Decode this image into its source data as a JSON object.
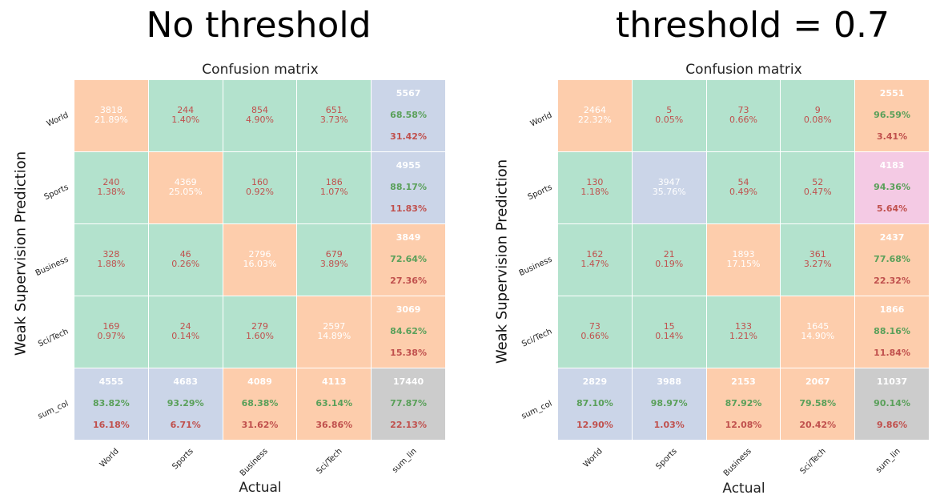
{
  "colors": {
    "green": "#b3e2cd",
    "orange": "#fdcdac",
    "blue": "#cbd5e8",
    "pink": "#f4cae4",
    "gray": "#cccccc",
    "text_red": "#c0504d",
    "text_green": "#5aa05a",
    "text_white": "#ffffff"
  },
  "chart_data": [
    {
      "type": "heatmap",
      "panel_title": "No threshold",
      "title": "Confusion matrix",
      "xlabel": "Actual",
      "ylabel": "Weak Supervision Prediction",
      "row_labels": [
        "World",
        "Sports",
        "Business",
        "Sci/Tech",
        "sum_col"
      ],
      "col_labels": [
        "World",
        "Sports",
        "Business",
        "Sci/Tech",
        "sum_lin"
      ],
      "cells": [
        [
          {
            "count": "3818",
            "pct": "21.89%",
            "color": "orange",
            "text": "white"
          },
          {
            "count": "244",
            "pct": "1.40%",
            "color": "green",
            "text": "red"
          },
          {
            "count": "854",
            "pct": "4.90%",
            "color": "green",
            "text": "red"
          },
          {
            "count": "651",
            "pct": "3.73%",
            "color": "green",
            "text": "red"
          },
          {
            "total": "5567",
            "acc": "68.58%",
            "err": "31.42%",
            "color": "blue"
          }
        ],
        [
          {
            "count": "240",
            "pct": "1.38%",
            "color": "green",
            "text": "red"
          },
          {
            "count": "4369",
            "pct": "25.05%",
            "color": "orange",
            "text": "white"
          },
          {
            "count": "160",
            "pct": "0.92%",
            "color": "green",
            "text": "red"
          },
          {
            "count": "186",
            "pct": "1.07%",
            "color": "green",
            "text": "red"
          },
          {
            "total": "4955",
            "acc": "88.17%",
            "err": "11.83%",
            "color": "blue"
          }
        ],
        [
          {
            "count": "328",
            "pct": "1.88%",
            "color": "green",
            "text": "red"
          },
          {
            "count": "46",
            "pct": "0.26%",
            "color": "green",
            "text": "red"
          },
          {
            "count": "2796",
            "pct": "16.03%",
            "color": "orange",
            "text": "white"
          },
          {
            "count": "679",
            "pct": "3.89%",
            "color": "green",
            "text": "red"
          },
          {
            "total": "3849",
            "acc": "72.64%",
            "err": "27.36%",
            "color": "orange"
          }
        ],
        [
          {
            "count": "169",
            "pct": "0.97%",
            "color": "green",
            "text": "red"
          },
          {
            "count": "24",
            "pct": "0.14%",
            "color": "green",
            "text": "red"
          },
          {
            "count": "279",
            "pct": "1.60%",
            "color": "green",
            "text": "red"
          },
          {
            "count": "2597",
            "pct": "14.89%",
            "color": "orange",
            "text": "white"
          },
          {
            "total": "3069",
            "acc": "84.62%",
            "err": "15.38%",
            "color": "orange"
          }
        ],
        [
          {
            "total": "4555",
            "acc": "83.82%",
            "err": "16.18%",
            "color": "blue"
          },
          {
            "total": "4683",
            "acc": "93.29%",
            "err": "6.71%",
            "color": "blue"
          },
          {
            "total": "4089",
            "acc": "68.38%",
            "err": "31.62%",
            "color": "orange"
          },
          {
            "total": "4113",
            "acc": "63.14%",
            "err": "36.86%",
            "color": "orange"
          },
          {
            "total": "17440",
            "acc": "77.87%",
            "err": "22.13%",
            "color": "gray"
          }
        ]
      ]
    },
    {
      "type": "heatmap",
      "panel_title": "threshold = 0.7",
      "title": "Confusion matrix",
      "xlabel": "Actual",
      "ylabel": "Weak Supervision Prediction",
      "row_labels": [
        "World",
        "Sports",
        "Business",
        "Sci/Tech",
        "sum_col"
      ],
      "col_labels": [
        "World",
        "Sports",
        "Business",
        "Sci/Tech",
        "sum_lin"
      ],
      "cells": [
        [
          {
            "count": "2464",
            "pct": "22.32%",
            "color": "orange",
            "text": "white"
          },
          {
            "count": "5",
            "pct": "0.05%",
            "color": "green",
            "text": "red"
          },
          {
            "count": "73",
            "pct": "0.66%",
            "color": "green",
            "text": "red"
          },
          {
            "count": "9",
            "pct": "0.08%",
            "color": "green",
            "text": "red"
          },
          {
            "total": "2551",
            "acc": "96.59%",
            "err": "3.41%",
            "color": "orange"
          }
        ],
        [
          {
            "count": "130",
            "pct": "1.18%",
            "color": "green",
            "text": "red"
          },
          {
            "count": "3947",
            "pct": "35.76%",
            "color": "blue",
            "text": "white"
          },
          {
            "count": "54",
            "pct": "0.49%",
            "color": "green",
            "text": "red"
          },
          {
            "count": "52",
            "pct": "0.47%",
            "color": "green",
            "text": "red"
          },
          {
            "total": "4183",
            "acc": "94.36%",
            "err": "5.64%",
            "color": "pink"
          }
        ],
        [
          {
            "count": "162",
            "pct": "1.47%",
            "color": "green",
            "text": "red"
          },
          {
            "count": "21",
            "pct": "0.19%",
            "color": "green",
            "text": "red"
          },
          {
            "count": "1893",
            "pct": "17.15%",
            "color": "orange",
            "text": "white"
          },
          {
            "count": "361",
            "pct": "3.27%",
            "color": "green",
            "text": "red"
          },
          {
            "total": "2437",
            "acc": "77.68%",
            "err": "22.32%",
            "color": "orange"
          }
        ],
        [
          {
            "count": "73",
            "pct": "0.66%",
            "color": "green",
            "text": "red"
          },
          {
            "count": "15",
            "pct": "0.14%",
            "color": "green",
            "text": "red"
          },
          {
            "count": "133",
            "pct": "1.21%",
            "color": "green",
            "text": "red"
          },
          {
            "count": "1645",
            "pct": "14.90%",
            "color": "orange",
            "text": "white"
          },
          {
            "total": "1866",
            "acc": "88.16%",
            "err": "11.84%",
            "color": "orange"
          }
        ],
        [
          {
            "total": "2829",
            "acc": "87.10%",
            "err": "12.90%",
            "color": "blue"
          },
          {
            "total": "3988",
            "acc": "98.97%",
            "err": "1.03%",
            "color": "blue"
          },
          {
            "total": "2153",
            "acc": "87.92%",
            "err": "12.08%",
            "color": "orange"
          },
          {
            "total": "2067",
            "acc": "79.58%",
            "err": "20.42%",
            "color": "orange"
          },
          {
            "total": "11037",
            "acc": "90.14%",
            "err": "9.86%",
            "color": "gray"
          }
        ]
      ]
    }
  ]
}
